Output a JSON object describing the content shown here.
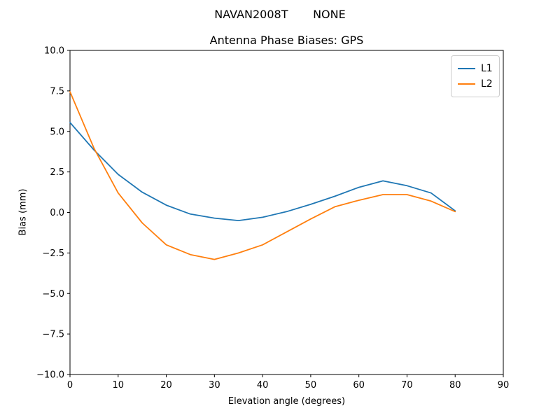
{
  "chart_data": {
    "type": "line",
    "suptitle": "NAVAN2008T       NONE",
    "title": "Antenna Phase Biases: GPS",
    "xlabel": "Elevation angle (degrees)",
    "ylabel": "Bias (mm)",
    "xlim": [
      0,
      90
    ],
    "ylim": [
      -10,
      10
    ],
    "grid": false,
    "legend_position": "upper right",
    "x": [
      0,
      5,
      10,
      15,
      20,
      25,
      30,
      35,
      40,
      45,
      50,
      55,
      60,
      65,
      70,
      75,
      80
    ],
    "series": [
      {
        "name": "L1",
        "color": "#1f77b4",
        "values": [
          5.55,
          3.85,
          2.35,
          1.25,
          0.45,
          -0.1,
          -0.35,
          -0.5,
          -0.3,
          0.05,
          0.5,
          1.0,
          1.55,
          1.95,
          1.65,
          1.2,
          0.1
        ]
      },
      {
        "name": "L2",
        "color": "#ff7f0e",
        "values": [
          7.45,
          3.95,
          1.2,
          -0.65,
          -2.0,
          -2.6,
          -2.9,
          -2.5,
          -2.0,
          -1.2,
          -0.4,
          0.35,
          0.75,
          1.1,
          1.1,
          0.7,
          0.05
        ]
      }
    ],
    "x_ticks": [
      {
        "v": 0,
        "label": "0"
      },
      {
        "v": 10,
        "label": "10"
      },
      {
        "v": 20,
        "label": "20"
      },
      {
        "v": 30,
        "label": "30"
      },
      {
        "v": 40,
        "label": "40"
      },
      {
        "v": 50,
        "label": "50"
      },
      {
        "v": 60,
        "label": "60"
      },
      {
        "v": 70,
        "label": "70"
      },
      {
        "v": 80,
        "label": "80"
      },
      {
        "v": 90,
        "label": "90"
      }
    ],
    "y_ticks": [
      {
        "v": 10,
        "label": "10.0"
      },
      {
        "v": 7.5,
        "label": "7.5"
      },
      {
        "v": 5,
        "label": "5.0"
      },
      {
        "v": 2.5,
        "label": "2.5"
      },
      {
        "v": 0,
        "label": "0.0"
      },
      {
        "v": -2.5,
        "label": "−2.5"
      },
      {
        "v": -5,
        "label": "−5.0"
      },
      {
        "v": -7.5,
        "label": "−7.5"
      },
      {
        "v": -10,
        "label": "−10.0"
      }
    ]
  }
}
